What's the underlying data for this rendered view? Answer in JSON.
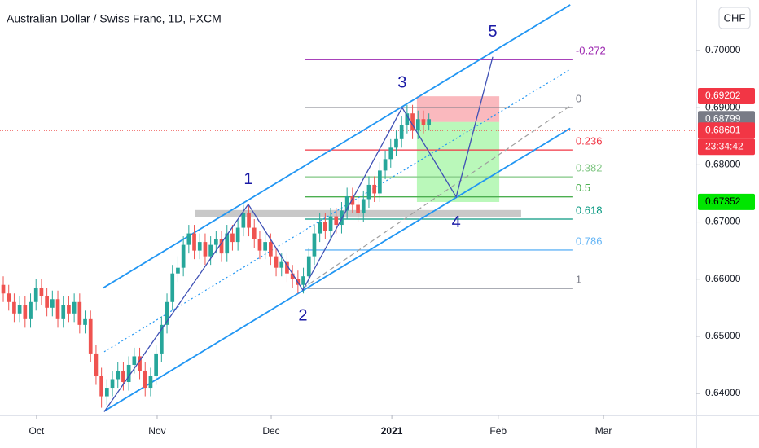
{
  "chart_data": {
    "type": "candlestick",
    "title": "Australian Dollar / Swiss Franc, 1D, FXCM",
    "currency": "CHF",
    "up_color": "#26a69a",
    "down_color": "#ef5350",
    "ohlc": [
      [
        0.659,
        0.6605,
        0.656,
        0.6575
      ],
      [
        0.6575,
        0.659,
        0.6545,
        0.656
      ],
      [
        0.656,
        0.6575,
        0.6525,
        0.654
      ],
      [
        0.654,
        0.657,
        0.6525,
        0.6555
      ],
      [
        0.6555,
        0.657,
        0.6515,
        0.653
      ],
      [
        0.653,
        0.6575,
        0.6515,
        0.656
      ],
      [
        0.656,
        0.66,
        0.6545,
        0.6585
      ],
      [
        0.6585,
        0.66,
        0.6555,
        0.657
      ],
      [
        0.657,
        0.6585,
        0.6535,
        0.655
      ],
      [
        0.655,
        0.658,
        0.6535,
        0.6565
      ],
      [
        0.6565,
        0.658,
        0.6515,
        0.653
      ],
      [
        0.653,
        0.657,
        0.6515,
        0.6555
      ],
      [
        0.6555,
        0.657,
        0.6525,
        0.654
      ],
      [
        0.654,
        0.6575,
        0.6525,
        0.656
      ],
      [
        0.656,
        0.6575,
        0.6505,
        0.652
      ],
      [
        0.652,
        0.6545,
        0.6505,
        0.653
      ],
      [
        0.653,
        0.6545,
        0.6455,
        0.647
      ],
      [
        0.647,
        0.6485,
        0.6415,
        0.643
      ],
      [
        0.643,
        0.6445,
        0.6375,
        0.6395
      ],
      [
        0.6395,
        0.6425,
        0.638,
        0.641
      ],
      [
        0.641,
        0.644,
        0.6395,
        0.6425
      ],
      [
        0.6425,
        0.6455,
        0.641,
        0.644
      ],
      [
        0.644,
        0.6455,
        0.6405,
        0.642
      ],
      [
        0.642,
        0.6465,
        0.6405,
        0.645
      ],
      [
        0.645,
        0.648,
        0.6435,
        0.6465
      ],
      [
        0.6465,
        0.648,
        0.6425,
        0.644
      ],
      [
        0.644,
        0.6455,
        0.6395,
        0.641
      ],
      [
        0.641,
        0.6445,
        0.6395,
        0.643
      ],
      [
        0.643,
        0.6485,
        0.6415,
        0.647
      ],
      [
        0.647,
        0.6535,
        0.6455,
        0.652
      ],
      [
        0.652,
        0.6575,
        0.6505,
        0.656
      ],
      [
        0.656,
        0.6625,
        0.6545,
        0.661
      ],
      [
        0.661,
        0.664,
        0.6595,
        0.662
      ],
      [
        0.662,
        0.6675,
        0.6605,
        0.666
      ],
      [
        0.666,
        0.6695,
        0.6645,
        0.668
      ],
      [
        0.668,
        0.6695,
        0.6635,
        0.665
      ],
      [
        0.665,
        0.668,
        0.6635,
        0.6665
      ],
      [
        0.6665,
        0.668,
        0.6625,
        0.664
      ],
      [
        0.664,
        0.6675,
        0.6625,
        0.666
      ],
      [
        0.666,
        0.6685,
        0.6645,
        0.667
      ],
      [
        0.667,
        0.6685,
        0.663,
        0.6645
      ],
      [
        0.6645,
        0.6695,
        0.663,
        0.668
      ],
      [
        0.668,
        0.6695,
        0.665,
        0.6665
      ],
      [
        0.6665,
        0.6705,
        0.665,
        0.669
      ],
      [
        0.669,
        0.673,
        0.6675,
        0.6715
      ],
      [
        0.6715,
        0.673,
        0.6675,
        0.669
      ],
      [
        0.669,
        0.6705,
        0.6655,
        0.667
      ],
      [
        0.667,
        0.6685,
        0.6635,
        0.665
      ],
      [
        0.665,
        0.668,
        0.6635,
        0.6665
      ],
      [
        0.6665,
        0.668,
        0.6625,
        0.664
      ],
      [
        0.664,
        0.6655,
        0.6605,
        0.662
      ],
      [
        0.662,
        0.6645,
        0.6605,
        0.663
      ],
      [
        0.663,
        0.6645,
        0.6595,
        0.661
      ],
      [
        0.661,
        0.6625,
        0.6585,
        0.66
      ],
      [
        0.66,
        0.6615,
        0.6575,
        0.659
      ],
      [
        0.659,
        0.662,
        0.6575,
        0.6605
      ],
      [
        0.6605,
        0.6655,
        0.659,
        0.664
      ],
      [
        0.664,
        0.6695,
        0.6625,
        0.668
      ],
      [
        0.668,
        0.6715,
        0.6665,
        0.67
      ],
      [
        0.67,
        0.6715,
        0.667,
        0.6685
      ],
      [
        0.6685,
        0.6725,
        0.667,
        0.671
      ],
      [
        0.671,
        0.6725,
        0.668,
        0.6695
      ],
      [
        0.6695,
        0.6735,
        0.668,
        0.672
      ],
      [
        0.672,
        0.676,
        0.6705,
        0.6745
      ],
      [
        0.6745,
        0.676,
        0.6715,
        0.673
      ],
      [
        0.673,
        0.6745,
        0.67,
        0.6715
      ],
      [
        0.6715,
        0.6755,
        0.67,
        0.674
      ],
      [
        0.674,
        0.678,
        0.6725,
        0.6765
      ],
      [
        0.6765,
        0.678,
        0.6735,
        0.675
      ],
      [
        0.675,
        0.6805,
        0.6735,
        0.679
      ],
      [
        0.679,
        0.6825,
        0.6775,
        0.681
      ],
      [
        0.681,
        0.6845,
        0.6795,
        0.683
      ],
      [
        0.683,
        0.686,
        0.6815,
        0.6845
      ],
      [
        0.6845,
        0.6885,
        0.683,
        0.687
      ],
      [
        0.687,
        0.6905,
        0.6855,
        0.689
      ],
      [
        0.689,
        0.6905,
        0.6845,
        0.686
      ],
      [
        0.686,
        0.6895,
        0.6845,
        0.688
      ],
      [
        0.688,
        0.6895,
        0.6855,
        0.687
      ],
      [
        0.687,
        0.689,
        0.686,
        0.688
      ]
    ],
    "xlim": [
      -0.6,
      127
    ],
    "xticks": [
      {
        "value": 6.1,
        "label": "Oct"
      },
      {
        "value": 28.2,
        "label": "Nov"
      },
      {
        "value": 49.1,
        "label": "Dec"
      },
      {
        "value": 71.2,
        "label": "2021"
      },
      {
        "value": 90.7,
        "label": "Feb"
      },
      {
        "value": 110,
        "label": "Mar"
      }
    ],
    "ylim": [
      0.63616,
      0.70884
    ],
    "yticks": [
      {
        "value": 0.64,
        "label": "0.64000"
      },
      {
        "value": 0.65,
        "label": "0.65000"
      },
      {
        "value": 0.66,
        "label": "0.66000"
      },
      {
        "value": 0.67,
        "label": "0.67000"
      },
      {
        "value": 0.68,
        "label": "0.68000"
      },
      {
        "value": 0.69,
        "label": "0.69000"
      },
      {
        "value": 0.7,
        "label": "0.70000"
      }
    ],
    "price_tags": [
      {
        "value": 0.69202,
        "color": "#f23645"
      },
      {
        "value": 0.68799,
        "color": "#787b86"
      },
      {
        "value": 0.68601,
        "color": "#f23645",
        "countdown": "23:34:42"
      },
      {
        "value": 0.67352,
        "color": "#00e600"
      }
    ],
    "last_price": 0.686,
    "channel": [
      {
        "color": "#2196f3",
        "style": "solid",
        "x": [
          18.2,
          103.9
        ],
        "price": [
          0.6584,
          0.708
        ]
      },
      {
        "color": "#2196f3",
        "style": "solid",
        "x": [
          18.5,
          103.9
        ],
        "price": [
          0.6369,
          0.6864
        ]
      },
      {
        "color": "#2196f3",
        "style": "dotted",
        "x": [
          18.5,
          103.9
        ],
        "price": [
          0.6473,
          0.6967
        ]
      },
      {
        "color": "#9e9e9e",
        "style": "dashed",
        "x": [
          54.9,
          103.9
        ],
        "price": [
          0.6584,
          0.6903
        ]
      }
    ],
    "zone": {
      "x": [
        35.2,
        94.9
      ],
      "price": [
        0.6721,
        0.6709
      ],
      "color": "#c8c8c8"
    },
    "fib": {
      "x": [
        55.3,
        104.3
      ],
      "levels": [
        {
          "ratio": -0.272,
          "price": 0.6984,
          "color": "#9c27b0"
        },
        {
          "ratio": 0,
          "price": 0.69,
          "color": "#787b86"
        },
        {
          "ratio": 0.236,
          "price": 0.6826,
          "color": "#f23645"
        },
        {
          "ratio": 0.382,
          "price": 0.6779,
          "color": "#81c784"
        },
        {
          "ratio": 0.5,
          "price": 0.6744,
          "color": "#4caf50"
        },
        {
          "ratio": 0.618,
          "price": 0.6705,
          "color": "#089981"
        },
        {
          "ratio": 0.786,
          "price": 0.6651,
          "color": "#64b5f6"
        },
        {
          "ratio": 1,
          "price": 0.6584,
          "color": "#787b86"
        }
      ]
    },
    "position": {
      "x": [
        75.8,
        90.9
      ],
      "stop": 0.692,
      "entry": 0.6875,
      "target": 0.6735
    },
    "waves": [
      {
        "x": 18.5,
        "price": 0.6368
      },
      {
        "label": "1",
        "x": 44.9,
        "price": 0.6731
      },
      {
        "label": "2",
        "x": 54.9,
        "price": 0.6581
      },
      {
        "label": "3",
        "x": 73.1,
        "price": 0.69
      },
      {
        "label": "4",
        "x": 83.0,
        "price": 0.6744
      },
      {
        "label": "5",
        "x": 89.7,
        "price": 0.6989
      }
    ]
  }
}
